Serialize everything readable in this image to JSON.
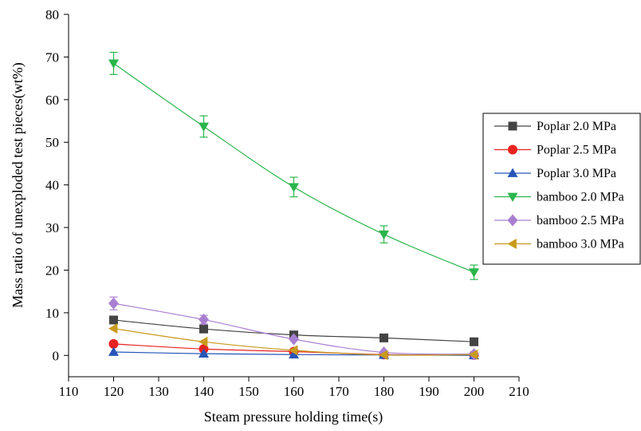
{
  "chart_data": {
    "type": "line",
    "title": "",
    "xlabel": "Steam pressure holding time(s)",
    "ylabel": "Mass ratio of unexploded test pieces(wt%)",
    "xlim": [
      110,
      210
    ],
    "ylim": [
      -5,
      80
    ],
    "xticks": [
      110,
      120,
      130,
      140,
      150,
      160,
      170,
      180,
      190,
      200,
      210
    ],
    "yticks": [
      0,
      10,
      20,
      30,
      40,
      50,
      60,
      70,
      80
    ],
    "grid": false,
    "legend_position": "right",
    "x": [
      120,
      140,
      160,
      180,
      200
    ],
    "series": [
      {
        "name": "Poplar 2.0 MPa",
        "color": "#444444",
        "marker": "square",
        "values": [
          8.3,
          6.2,
          4.8,
          4.1,
          3.2
        ],
        "errors": [
          0,
          0,
          0,
          0,
          0
        ]
      },
      {
        "name": "Poplar 2.5 MPa",
        "color": "#e8231f",
        "marker": "circle",
        "values": [
          2.7,
          1.5,
          0.9,
          0.2,
          0.1
        ],
        "errors": [
          0,
          0,
          0,
          0,
          0
        ]
      },
      {
        "name": "Poplar 3.0 MPa",
        "color": "#2755b8",
        "marker": "triangle-up",
        "values": [
          0.8,
          0.4,
          0.2,
          0.1,
          0.0
        ],
        "errors": [
          0,
          0,
          0,
          0,
          0
        ]
      },
      {
        "name": "bamboo 2.0 MPa",
        "color": "#2ab54b",
        "marker": "triangle-down",
        "values": [
          68.5,
          53.7,
          39.5,
          28.4,
          19.5
        ],
        "errors": [
          2.6,
          2.5,
          2.3,
          2.0,
          1.7
        ]
      },
      {
        "name": "bamboo 2.5 MPa",
        "color": "#a97fd1",
        "marker": "diamond",
        "values": [
          12.2,
          8.4,
          3.8,
          0.7,
          0.3
        ],
        "errors": [
          1.5,
          1.0,
          0,
          0,
          0
        ]
      },
      {
        "name": "bamboo 3.0 MPa",
        "color": "#c89a1d",
        "marker": "triangle-left",
        "values": [
          6.3,
          3.2,
          1.2,
          0.1,
          0.2
        ],
        "errors": [
          0,
          0,
          0,
          0,
          0
        ]
      }
    ]
  }
}
